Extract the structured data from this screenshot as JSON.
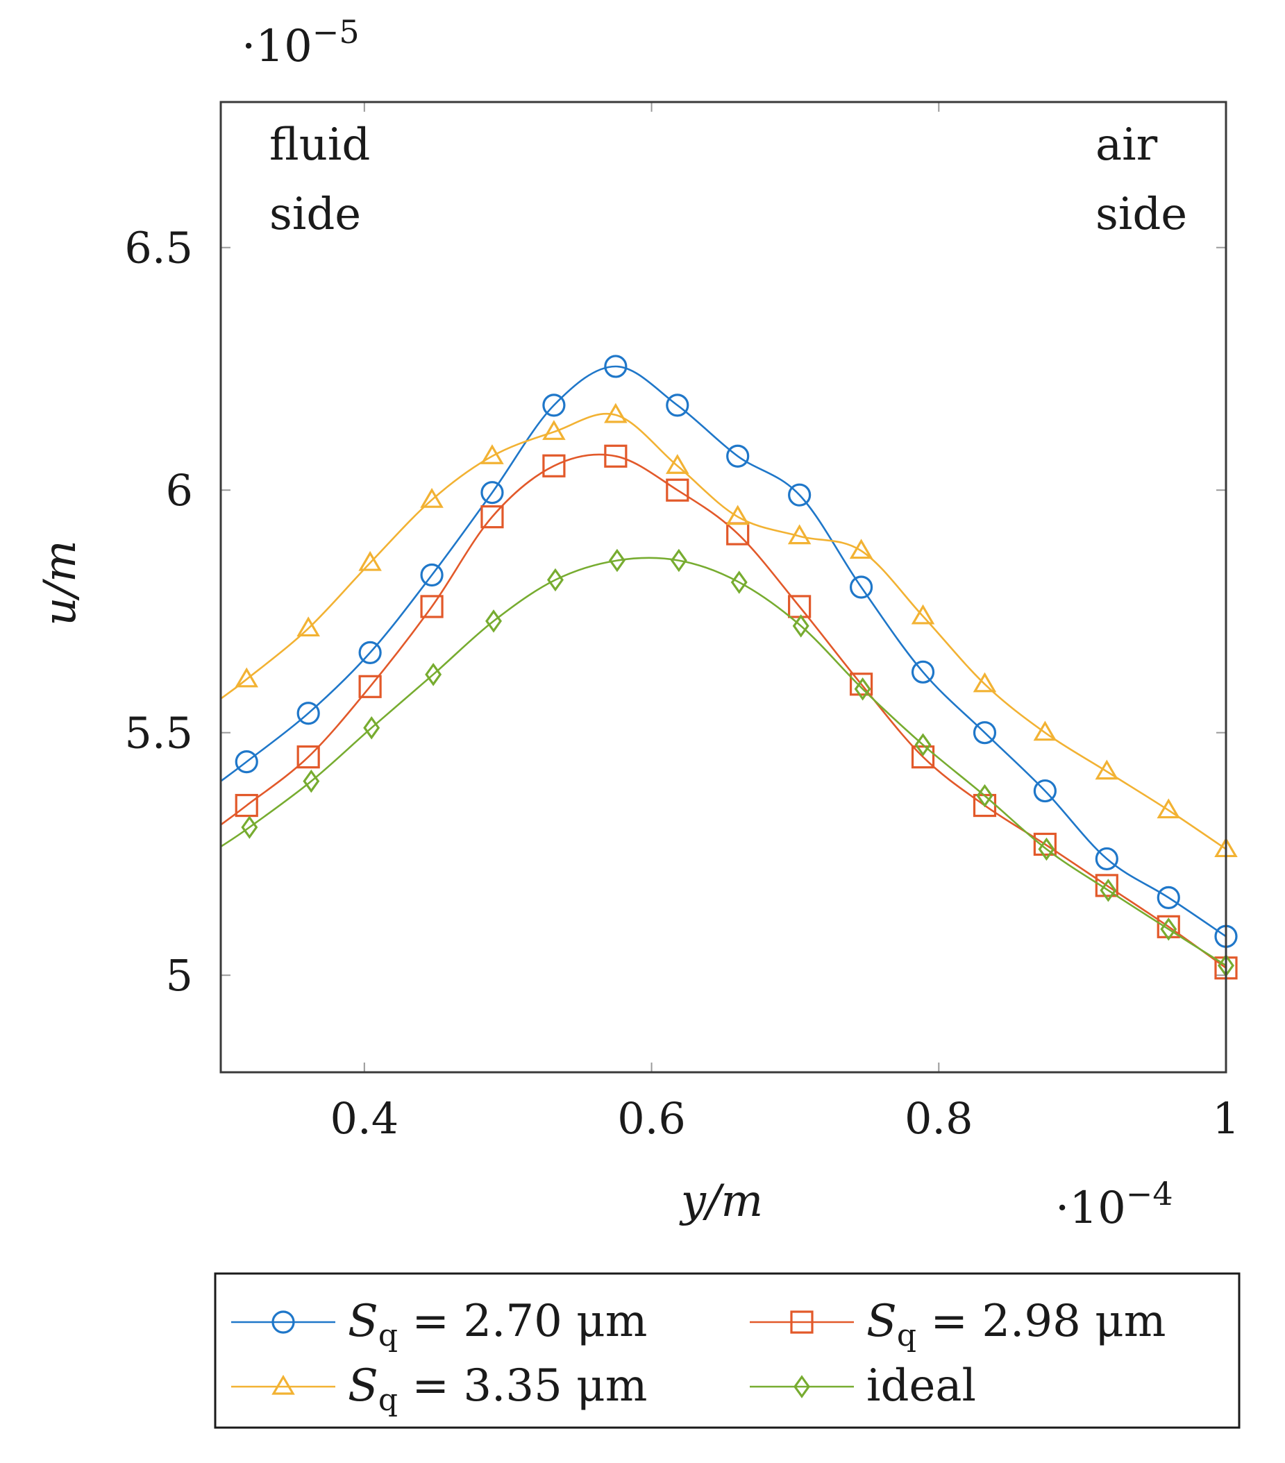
{
  "chart_data": {
    "type": "line",
    "title": "",
    "xlabel": "y/m",
    "ylabel": "u/m",
    "x_scale_label": "·10",
    "x_scale_exponent": "−4",
    "y_scale_label": "·10",
    "y_scale_exponent": "−5",
    "xlim": [
      0.3,
      1.0
    ],
    "ylim": [
      4.8,
      6.8
    ],
    "xticks": [
      0.4,
      0.6,
      0.8,
      1.0
    ],
    "xtick_labels": [
      "0.4",
      "0.6",
      "0.8",
      "1"
    ],
    "yticks": [
      5.0,
      5.5,
      6.0,
      6.5
    ],
    "ytick_labels": [
      "5",
      "5.5",
      "6",
      "6.5"
    ],
    "annotations": {
      "left_line1": "fluid",
      "left_line2": "side",
      "right_line1": "air",
      "right_line2": "side"
    },
    "legend_position": "below",
    "series": [
      {
        "name": "Sq = 2.70 μm",
        "legend_prefix": "S",
        "legend_sub": "q",
        "legend_value": " = 2.70 ",
        "legend_unit": "μm",
        "color": "#1f77c9",
        "marker": "circle",
        "x": [
          0.3,
          0.318,
          0.361,
          0.404,
          0.447,
          0.489,
          0.532,
          0.575,
          0.618,
          0.66,
          0.703,
          0.746,
          0.789,
          0.832,
          0.874,
          0.917,
          0.96,
          1.0
        ],
        "y": [
          5.4,
          5.44,
          5.54,
          5.665,
          5.825,
          5.995,
          6.175,
          6.255,
          6.175,
          6.07,
          5.99,
          5.8,
          5.625,
          5.5,
          5.38,
          5.24,
          5.16,
          5.08
        ],
        "marker_x": [
          0.318,
          0.361,
          0.404,
          0.447,
          0.489,
          0.532,
          0.575,
          0.618,
          0.66,
          0.703,
          0.746,
          0.789,
          0.832,
          0.874,
          0.917,
          0.96,
          1.0
        ]
      },
      {
        "name": "Sq = 2.98 μm",
        "legend_prefix": "S",
        "legend_sub": "q",
        "legend_value": " = 2.98 ",
        "legend_unit": "μm",
        "color": "#e2592a",
        "marker": "square",
        "x": [
          0.3,
          0.318,
          0.361,
          0.404,
          0.447,
          0.489,
          0.532,
          0.575,
          0.618,
          0.66,
          0.703,
          0.746,
          0.789,
          0.832,
          0.874,
          0.917,
          0.96,
          1.0
        ],
        "y": [
          5.31,
          5.35,
          5.45,
          5.595,
          5.76,
          5.945,
          6.05,
          6.07,
          6.0,
          5.91,
          5.76,
          5.6,
          5.45,
          5.35,
          5.27,
          5.185,
          5.1,
          5.015
        ],
        "marker_x": [
          0.318,
          0.361,
          0.404,
          0.447,
          0.489,
          0.532,
          0.575,
          0.618,
          0.66,
          0.703,
          0.746,
          0.789,
          0.832,
          0.874,
          0.917,
          0.96,
          1.0
        ]
      },
      {
        "name": "Sq = 3.35 μm",
        "legend_prefix": "S",
        "legend_sub": "q",
        "legend_value": " = 3.35 ",
        "legend_unit": "μm",
        "color": "#f2b233",
        "marker": "triangle",
        "x": [
          0.3,
          0.318,
          0.361,
          0.404,
          0.447,
          0.489,
          0.532,
          0.575,
          0.618,
          0.66,
          0.703,
          0.746,
          0.789,
          0.832,
          0.874,
          0.917,
          0.96,
          1.0
        ],
        "y": [
          5.57,
          5.61,
          5.715,
          5.85,
          5.98,
          6.07,
          6.12,
          6.155,
          6.05,
          5.945,
          5.905,
          5.875,
          5.74,
          5.6,
          5.5,
          5.42,
          5.34,
          5.26
        ],
        "marker_x": [
          0.318,
          0.361,
          0.404,
          0.447,
          0.489,
          0.532,
          0.575,
          0.618,
          0.66,
          0.703,
          0.746,
          0.789,
          0.832,
          0.874,
          0.917,
          0.96,
          1.0
        ]
      },
      {
        "name": "ideal",
        "legend_prefix": "ideal",
        "legend_sub": "",
        "legend_value": "",
        "legend_unit": "",
        "color": "#77ac30",
        "marker": "diamond",
        "x": [
          0.3,
          0.32,
          0.363,
          0.405,
          0.448,
          0.49,
          0.533,
          0.576,
          0.619,
          0.661,
          0.704,
          0.747,
          0.789,
          0.832,
          0.875,
          0.918,
          0.96,
          1.0
        ],
        "y": [
          5.265,
          5.305,
          5.4,
          5.51,
          5.62,
          5.73,
          5.815,
          5.855,
          5.855,
          5.81,
          5.72,
          5.59,
          5.475,
          5.37,
          5.26,
          5.175,
          5.095,
          5.02
        ],
        "marker_x": [
          0.32,
          0.363,
          0.405,
          0.448,
          0.49,
          0.533,
          0.576,
          0.619,
          0.661,
          0.704,
          0.747,
          0.789,
          0.832,
          0.875,
          0.918,
          0.96,
          1.0
        ]
      }
    ]
  }
}
